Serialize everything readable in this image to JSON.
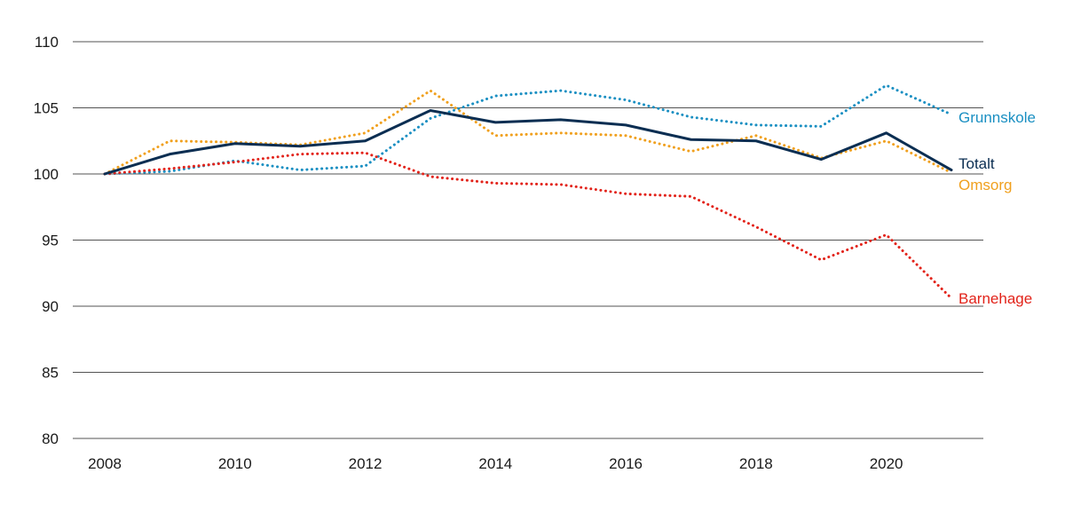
{
  "chart_data": {
    "type": "line",
    "title": "",
    "xlabel": "",
    "ylabel": "",
    "x": [
      2008,
      2009,
      2010,
      2011,
      2012,
      2013,
      2014,
      2015,
      2016,
      2017,
      2018,
      2019,
      2020,
      2021
    ],
    "x_ticks": [
      "2008",
      "2010",
      "2012",
      "2014",
      "2016",
      "2018",
      "2020"
    ],
    "y_ticks": [
      "80",
      "85",
      "90",
      "95",
      "100",
      "105",
      "110"
    ],
    "xlim": [
      2007.5,
      2021.7
    ],
    "ylim": [
      80,
      110
    ],
    "grid": "horizontal",
    "legend": "inline-right",
    "series": [
      {
        "name": "Grunnskole",
        "color": "#1a8fc2",
        "style": "dotted",
        "values": [
          100,
          100.2,
          101.0,
          100.3,
          100.6,
          104.2,
          105.9,
          106.3,
          105.6,
          104.3,
          103.7,
          103.6,
          106.7,
          104.5
        ]
      },
      {
        "name": "Totalt",
        "color": "#0b2e52",
        "style": "solid",
        "values": [
          100,
          101.5,
          102.3,
          102.1,
          102.5,
          104.8,
          103.9,
          104.1,
          103.7,
          102.6,
          102.5,
          101.1,
          103.1,
          100.3
        ]
      },
      {
        "name": "Omsorg",
        "color": "#f0a01e",
        "style": "dotted",
        "values": [
          100,
          102.5,
          102.4,
          102.2,
          103.1,
          106.3,
          102.9,
          103.1,
          102.9,
          101.7,
          102.9,
          101.2,
          102.5,
          100.1
        ]
      },
      {
        "name": "Barnehage",
        "color": "#e2231a",
        "style": "dotted",
        "values": [
          100,
          100.4,
          100.9,
          101.5,
          101.6,
          99.8,
          99.3,
          99.2,
          98.5,
          98.3,
          96.0,
          93.5,
          95.4,
          90.6
        ]
      }
    ]
  }
}
